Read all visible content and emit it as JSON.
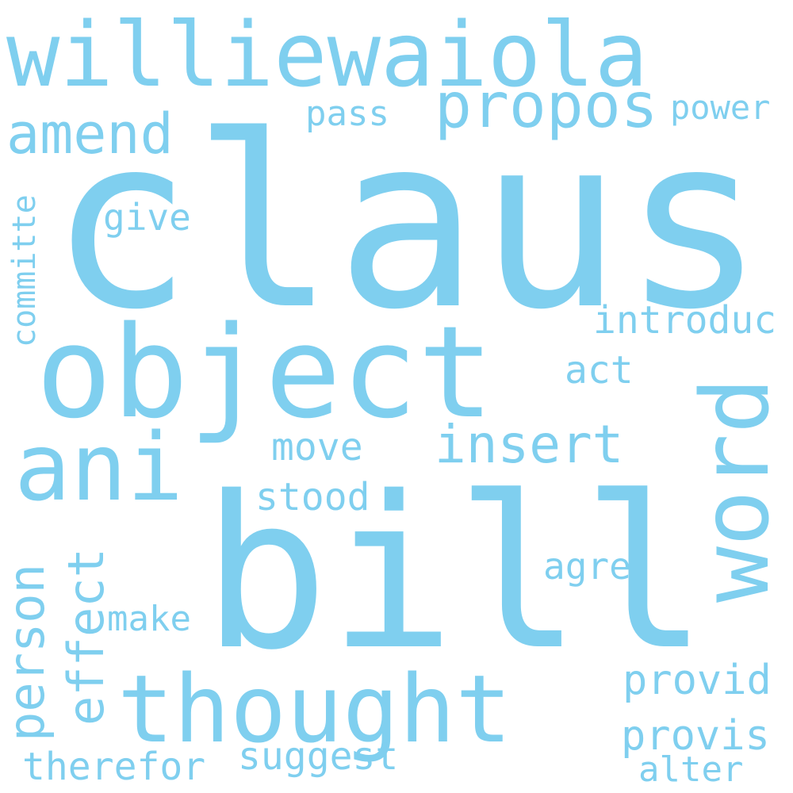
{
  "word_color": "#7fcfef",
  "background": "#ffffff",
  "words": [
    {
      "text": "claus",
      "orientation": "horizontal"
    },
    {
      "text": "williewaiola",
      "orientation": "horizontal"
    },
    {
      "text": "bill",
      "orientation": "horizontal"
    },
    {
      "text": "object",
      "orientation": "horizontal"
    },
    {
      "text": "thought",
      "orientation": "horizontal"
    },
    {
      "text": "ani",
      "orientation": "horizontal"
    },
    {
      "text": "word",
      "orientation": "vertical"
    },
    {
      "text": "propos",
      "orientation": "horizontal"
    },
    {
      "text": "amend",
      "orientation": "horizontal"
    },
    {
      "text": "person",
      "orientation": "vertical"
    },
    {
      "text": "effect",
      "orientation": "vertical"
    },
    {
      "text": "insert",
      "orientation": "horizontal"
    },
    {
      "text": "committe",
      "orientation": "vertical"
    },
    {
      "text": "introduc",
      "orientation": "horizontal"
    },
    {
      "text": "provid",
      "orientation": "horizontal"
    },
    {
      "text": "provis",
      "orientation": "horizontal"
    },
    {
      "text": "suggest",
      "orientation": "horizontal"
    },
    {
      "text": "therefor",
      "orientation": "horizontal"
    },
    {
      "text": "power",
      "orientation": "horizontal"
    },
    {
      "text": "move",
      "orientation": "horizontal"
    },
    {
      "text": "stood",
      "orientation": "horizontal"
    },
    {
      "text": "agre",
      "orientation": "horizontal"
    },
    {
      "text": "make",
      "orientation": "horizontal"
    },
    {
      "text": "alter",
      "orientation": "horizontal"
    },
    {
      "text": "pass",
      "orientation": "horizontal"
    },
    {
      "text": "give",
      "orientation": "horizontal"
    },
    {
      "text": "act",
      "orientation": "horizontal"
    }
  ]
}
